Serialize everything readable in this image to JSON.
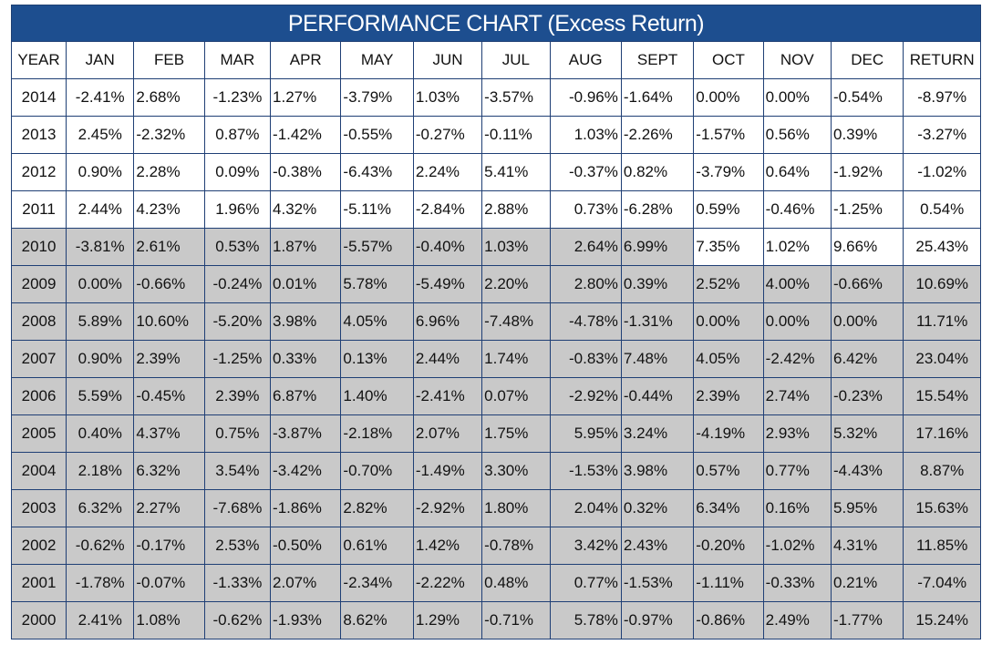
{
  "chart_data": {
    "type": "table",
    "title": "PERFORMANCE CHART (Excess Return)",
    "header_color": "#1d4e8f",
    "shade_color": "#c9c9c9",
    "columns": [
      "YEAR",
      "JAN",
      "FEB",
      "MAR",
      "APR",
      "MAY",
      "JUN",
      "JUL",
      "AUG",
      "SEPT",
      "OCT",
      "NOV",
      "DEC",
      "RETURN"
    ],
    "rows": [
      {
        "year": "2014",
        "shaded_months": 0,
        "shade_return": false,
        "values": [
          "-2.41%",
          "2.68%",
          "-1.23%",
          "1.27%",
          "-3.79%",
          "1.03%",
          "-3.57%",
          "-0.96%",
          "-1.64%",
          "0.00%",
          "0.00%",
          "-0.54%",
          "-8.97%"
        ]
      },
      {
        "year": "2013",
        "shaded_months": 0,
        "shade_return": false,
        "values": [
          "2.45%",
          "-2.32%",
          "0.87%",
          "-1.42%",
          "-0.55%",
          "-0.27%",
          "-0.11%",
          "1.03%",
          "-2.26%",
          "-1.57%",
          "0.56%",
          "0.39%",
          "-3.27%"
        ]
      },
      {
        "year": "2012",
        "shaded_months": 0,
        "shade_return": false,
        "values": [
          "0.90%",
          "2.28%",
          "0.09%",
          "-0.38%",
          "-6.43%",
          "2.24%",
          "5.41%",
          "-0.37%",
          "0.82%",
          "-3.79%",
          "0.64%",
          "-1.92%",
          "-1.02%"
        ]
      },
      {
        "year": "2011",
        "shaded_months": 0,
        "shade_return": false,
        "values": [
          "2.44%",
          "4.23%",
          "1.96%",
          "4.32%",
          "-5.11%",
          "-2.84%",
          "2.88%",
          "0.73%",
          "-6.28%",
          "0.59%",
          "-0.46%",
          "-1.25%",
          "0.54%"
        ]
      },
      {
        "year": "2010",
        "shaded_months": 9,
        "shade_return": false,
        "values": [
          "-3.81%",
          "2.61%",
          "0.53%",
          "1.87%",
          "-5.57%",
          "-0.40%",
          "1.03%",
          "2.64%",
          "6.99%",
          "7.35%",
          "1.02%",
          "9.66%",
          "25.43%"
        ]
      },
      {
        "year": "2009",
        "shaded_months": 12,
        "shade_return": true,
        "values": [
          "0.00%",
          "-0.66%",
          "-0.24%",
          "0.01%",
          "5.78%",
          "-5.49%",
          "2.20%",
          "2.80%",
          "0.39%",
          "2.52%",
          "4.00%",
          "-0.66%",
          "10.69%"
        ]
      },
      {
        "year": "2008",
        "shaded_months": 12,
        "shade_return": true,
        "values": [
          "5.89%",
          "10.60%",
          "-5.20%",
          "3.98%",
          "4.05%",
          "6.96%",
          "-7.48%",
          "-4.78%",
          "-1.31%",
          "0.00%",
          "0.00%",
          "0.00%",
          "11.71%"
        ]
      },
      {
        "year": "2007",
        "shaded_months": 12,
        "shade_return": true,
        "values": [
          "0.90%",
          "2.39%",
          "-1.25%",
          "0.33%",
          "0.13%",
          "2.44%",
          "1.74%",
          "-0.83%",
          "7.48%",
          "4.05%",
          "-2.42%",
          "6.42%",
          "23.04%"
        ]
      },
      {
        "year": "2006",
        "shaded_months": 12,
        "shade_return": true,
        "values": [
          "5.59%",
          "-0.45%",
          "2.39%",
          "6.87%",
          "1.40%",
          "-2.41%",
          "0.07%",
          "-2.92%",
          "-0.44%",
          "2.39%",
          "2.74%",
          "-0.23%",
          "15.54%"
        ]
      },
      {
        "year": "2005",
        "shaded_months": 12,
        "shade_return": true,
        "values": [
          "0.40%",
          "4.37%",
          "0.75%",
          "-3.87%",
          "-2.18%",
          "2.07%",
          "1.75%",
          "5.95%",
          "3.24%",
          "-4.19%",
          "2.93%",
          "5.32%",
          "17.16%"
        ]
      },
      {
        "year": "2004",
        "shaded_months": 12,
        "shade_return": true,
        "values": [
          "2.18%",
          "6.32%",
          "3.54%",
          "-3.42%",
          "-0.70%",
          "-1.49%",
          "3.30%",
          "-1.53%",
          "3.98%",
          "0.57%",
          "0.77%",
          "-4.43%",
          "8.87%"
        ]
      },
      {
        "year": "2003",
        "shaded_months": 12,
        "shade_return": true,
        "values": [
          "6.32%",
          "2.27%",
          "-7.68%",
          "-1.86%",
          "2.82%",
          "-2.92%",
          "1.80%",
          "2.04%",
          "0.32%",
          "6.34%",
          "0.16%",
          "5.95%",
          "15.63%"
        ]
      },
      {
        "year": "2002",
        "shaded_months": 12,
        "shade_return": true,
        "values": [
          "-0.62%",
          "-0.17%",
          "2.53%",
          "-0.50%",
          "0.61%",
          "1.42%",
          "-0.78%",
          "3.42%",
          "2.43%",
          "-0.20%",
          "-1.02%",
          "4.31%",
          "11.85%"
        ]
      },
      {
        "year": "2001",
        "shaded_months": 12,
        "shade_return": true,
        "values": [
          "-1.78%",
          "-0.07%",
          "-1.33%",
          "2.07%",
          "-2.34%",
          "-2.22%",
          "0.48%",
          "0.77%",
          "-1.53%",
          "-1.11%",
          "-0.33%",
          "0.21%",
          "-7.04%"
        ]
      },
      {
        "year": "2000",
        "shaded_months": 12,
        "shade_return": true,
        "values": [
          "2.41%",
          "1.08%",
          "-0.62%",
          "-1.93%",
          "8.62%",
          "1.29%",
          "-0.71%",
          "5.78%",
          "-0.97%",
          "-0.86%",
          "2.49%",
          "-1.77%",
          "15.24%"
        ]
      }
    ]
  }
}
